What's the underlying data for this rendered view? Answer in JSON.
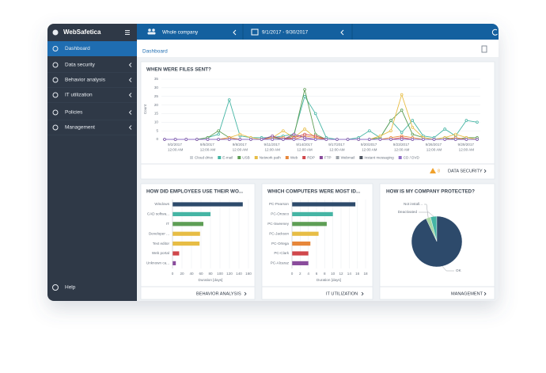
{
  "app": {
    "name": "WebSafetica"
  },
  "sidebar": {
    "items": [
      "Dashboard",
      "Data security",
      "Behavior analysis",
      "IT utilization",
      "Policies",
      "Management"
    ],
    "help": "Help"
  },
  "topbar": {
    "scope": "Whole company",
    "date_range": "9/1/2017 - 9/30/2017"
  },
  "breadcrumb": "Dashboard",
  "panels": {
    "files": {
      "warning_count": 8,
      "link": "DATA SECURITY"
    },
    "behavior": {
      "link": "BEHAVIOR ANALYSIS"
    },
    "computers": {
      "link": "IT UTILIZATION"
    },
    "protection": {
      "link": "MANAGEMENT"
    }
  },
  "chart_data": [
    {
      "type": "line",
      "title": "WHEN WERE FILES SENT?",
      "y_label": "Count",
      "categories": [
        null,
        "9/2/2017 12:00 AM",
        null,
        null,
        "9/5/2017 12:00 AM",
        null,
        null,
        "9/8/2017 12:00 AM",
        null,
        null,
        "9/11/2017 12:00 AM",
        null,
        null,
        "9/14/2017 12:00 AM",
        null,
        null,
        "9/17/2017 12:00 AM",
        null,
        null,
        "9/20/2017 12:00 AM",
        null,
        null,
        "9/23/2017 12:00 AM",
        null,
        null,
        "9/26/2017 12:00 AM",
        null,
        null,
        "9/29/2017 12:00 AM",
        null
      ],
      "ylim": [
        0,
        35
      ],
      "yticks": [
        0,
        5,
        10,
        15,
        20,
        25,
        30,
        35
      ],
      "grid": true,
      "series": [
        {
          "name": "Cloud drive",
          "color": "#cfd3d8",
          "visible": false,
          "values": [
            0,
            0,
            0,
            0,
            0,
            0,
            0,
            0,
            0,
            0,
            0,
            0,
            0,
            0,
            0,
            0,
            0,
            0,
            0,
            0,
            0,
            0,
            0,
            0,
            0,
            0,
            0,
            0,
            0,
            0
          ]
        },
        {
          "name": "E-mail",
          "color": "#45b5a4",
          "values": [
            0,
            0,
            0,
            0,
            1,
            3,
            23,
            2,
            1,
            1,
            1,
            2,
            3,
            25,
            15,
            1,
            0,
            0,
            1,
            5,
            1,
            11,
            4,
            11,
            2,
            1,
            6,
            2,
            11,
            10
          ]
        },
        {
          "name": "USB",
          "color": "#5e9e55",
          "values": [
            0,
            0,
            0,
            0,
            1,
            5,
            1,
            0,
            0,
            0,
            1,
            0,
            2,
            29,
            3,
            0,
            0,
            0,
            0,
            0,
            1,
            11,
            17,
            3,
            1,
            0,
            1,
            0,
            1,
            1
          ]
        },
        {
          "name": "Network path",
          "color": "#e7bd45",
          "values": [
            0,
            0,
            0,
            0,
            0,
            0,
            1,
            3,
            1,
            0,
            1,
            5,
            1,
            6,
            1,
            0,
            0,
            0,
            0,
            0,
            2,
            5,
            26,
            7,
            1,
            0,
            1,
            3,
            1,
            0
          ]
        },
        {
          "name": "Web",
          "color": "#e7873a",
          "values": [
            0,
            0,
            0,
            0,
            0,
            0,
            1,
            0,
            0,
            0,
            1,
            1,
            0,
            2,
            1,
            0,
            0,
            0,
            0,
            0,
            0,
            1,
            2,
            1,
            0,
            0,
            0,
            1,
            0,
            0
          ]
        },
        {
          "name": "RDP",
          "color": "#d0474b",
          "values": [
            0,
            0,
            0,
            0,
            0,
            0,
            0,
            0,
            0,
            0,
            0,
            0,
            1,
            3,
            2,
            0,
            0,
            0,
            0,
            0,
            0,
            0,
            1,
            0,
            0,
            0,
            0,
            0,
            0,
            0
          ]
        },
        {
          "name": "FTP",
          "color": "#8a4c9c",
          "values": [
            0,
            0,
            0,
            0,
            0,
            0,
            0,
            0,
            0,
            0,
            2,
            0,
            3,
            1,
            0,
            0,
            0,
            0,
            0,
            0,
            0,
            0,
            0,
            0,
            0,
            0,
            0,
            0,
            0,
            0
          ]
        },
        {
          "name": "Webmail",
          "color": "#9aa0a6",
          "values": [
            0,
            0,
            0,
            0,
            0,
            0,
            0,
            0,
            0,
            0,
            0,
            0,
            0,
            0,
            0,
            0,
            0,
            0,
            0,
            0,
            0,
            0,
            0,
            0,
            0,
            0,
            0,
            0,
            0,
            0
          ]
        },
        {
          "name": "Instant messaging",
          "color": "#4d5560",
          "values": [
            0,
            0,
            0,
            0,
            0,
            0,
            0,
            0,
            0,
            0,
            0,
            0,
            0,
            0,
            0,
            0,
            0,
            0,
            0,
            0,
            0,
            0,
            0,
            0,
            0,
            0,
            0,
            0,
            0,
            0
          ]
        },
        {
          "name": "CD / DVD",
          "color": "#8e6cc6",
          "values": [
            0,
            0,
            0,
            0,
            0,
            0,
            0,
            0,
            0,
            0,
            0,
            0,
            0,
            0,
            0,
            0,
            0,
            0,
            0,
            0,
            0,
            0,
            0,
            0,
            0,
            0,
            0,
            0,
            0,
            0
          ]
        }
      ]
    },
    {
      "type": "hbar",
      "title": "HOW DID EMPLOYEES USE THEIR WO...",
      "x_label": "Duration [days]",
      "categories": [
        "Windows",
        "CAD softwa...",
        "IT",
        "Developer ...",
        "Text editor",
        "Web portal",
        "Unknown ca..."
      ],
      "values": [
        148,
        80,
        65,
        58,
        57,
        14,
        7
      ],
      "colors": [
        "#2d4a6b",
        "#45b5a4",
        "#5e9e55",
        "#e7bd45",
        "#e7bd45",
        "#d0474b",
        "#8a4c9c"
      ],
      "xlim": [
        0,
        160
      ],
      "xticks": [
        0,
        20,
        40,
        60,
        80,
        100,
        120,
        140,
        160
      ]
    },
    {
      "type": "hbar",
      "title": "WHICH COMPUTERS WERE MOST ID...",
      "x_label": "Duration [days]",
      "categories": [
        "PC-Pearson",
        "PC-Orosco",
        "PC-Sweeney",
        "PC-Jackson",
        "PC-Ortega",
        "PC-Clark",
        "PC-Alcaraz"
      ],
      "values": [
        15.5,
        10,
        8.5,
        6.5,
        4.5,
        4,
        4
      ],
      "colors": [
        "#2d4a6b",
        "#45b5a4",
        "#5e9e55",
        "#e7bd45",
        "#e7873a",
        "#d0474b",
        "#8a4c9c"
      ],
      "xlim": [
        0,
        18
      ],
      "xticks": [
        0,
        2,
        4,
        6,
        8,
        10,
        12,
        14,
        16,
        18
      ]
    },
    {
      "type": "pie",
      "title": "HOW IS MY COMPANY PROTECTED?",
      "categories": [
        "Not install...",
        "Deactivated",
        "OK"
      ],
      "values": [
        3,
        4,
        93
      ],
      "colors": [
        "#a9d8a6",
        "#45b5a4",
        "#2d4a6b"
      ]
    }
  ]
}
